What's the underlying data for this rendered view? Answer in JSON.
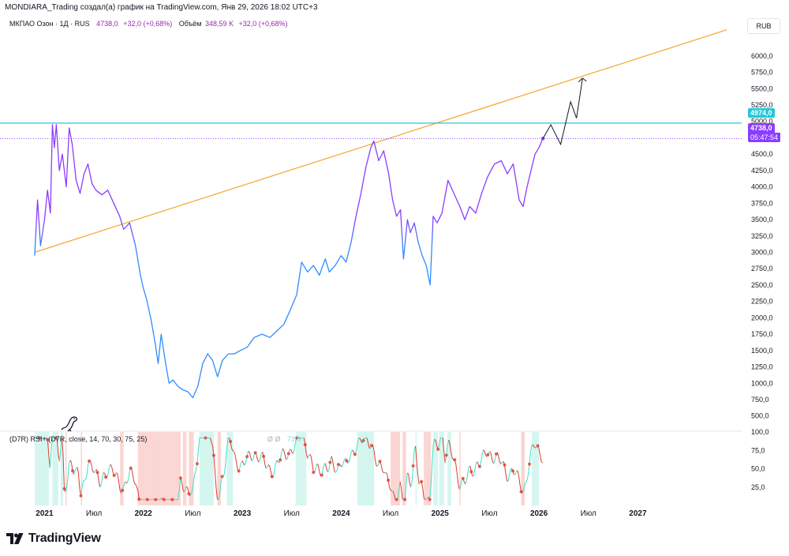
{
  "header": {
    "attribution": "MONDIARA_Trading создал(а) график на TradingView.com, Янв 29, 2026 18:02 UTC+3"
  },
  "legend": {
    "symbol": "МКПАО Озон · 1Д · RUS",
    "price": "4738,0",
    "change": "+32,0 (+0,68%)",
    "volume_label": "Объём",
    "volume": "348,59 K",
    "volume_change": "+32,0 (+0,68%)"
  },
  "currency": "RUB",
  "rsi": {
    "label": "(D7R) RSI+ (D7R, close, 14, 70, 30, 75, 25)",
    "value1": "Ø  Ø",
    "value2": "73,5"
  },
  "tags": {
    "resistance": "4974,0",
    "last_price": "4738,0",
    "countdown": "05:47:54"
  },
  "brand": "TradingView",
  "colors": {
    "price_purple": "#8b3dff",
    "price_blue": "#2f8cff",
    "resistance": "#26c6da",
    "trendline": "#f4a52a",
    "projection": "#131722",
    "rsi_red": "#e03a2f",
    "rsi_green": "#3fe0c0",
    "band_red": "#f9c9c5",
    "band_green": "#c8f4ea"
  },
  "chart_data": {
    "type": "line",
    "title": "МКПАО Озон · 1Д · RUS",
    "ylabel": "RUB",
    "ylim": [
      400,
      6300
    ],
    "y_ticks": [
      "6000,0",
      "5750,0",
      "5500,0",
      "5250,0",
      "5000,0",
      "4750,0",
      "4500,0",
      "4250,0",
      "4000,0",
      "3750,0",
      "3500,0",
      "3250,0",
      "3000,0",
      "2750,0",
      "2500,0",
      "2250,0",
      "2000,0",
      "1750,0",
      "1500,0",
      "1250,0",
      "1000,0",
      "750,0",
      "500,0"
    ],
    "x_tick_labels": [
      {
        "t": 2021.0,
        "label": "2021"
      },
      {
        "t": 2021.5,
        "label": "Июл"
      },
      {
        "t": 2022.0,
        "label": "2022"
      },
      {
        "t": 2022.5,
        "label": "Июл"
      },
      {
        "t": 2023.0,
        "label": "2023"
      },
      {
        "t": 2023.5,
        "label": "Июл"
      },
      {
        "t": 2024.0,
        "label": "2024"
      },
      {
        "t": 2024.5,
        "label": "Июл"
      },
      {
        "t": 2025.0,
        "label": "2025"
      },
      {
        "t": 2025.5,
        "label": "Июл"
      },
      {
        "t": 2026.0,
        "label": "2026"
      },
      {
        "t": 2026.5,
        "label": "Июл"
      },
      {
        "t": 2027.0,
        "label": "2027"
      }
    ],
    "xlim": [
      2020.55,
      2028.05
    ],
    "series": [
      {
        "name": "OZON close",
        "points": [
          [
            2020.9,
            2950
          ],
          [
            2020.93,
            3800
          ],
          [
            2020.96,
            3100
          ],
          [
            2021.0,
            3500
          ],
          [
            2021.03,
            3950
          ],
          [
            2021.06,
            3600
          ],
          [
            2021.08,
            4950
          ],
          [
            2021.1,
            4600
          ],
          [
            2021.12,
            4950
          ],
          [
            2021.15,
            4250
          ],
          [
            2021.18,
            4500
          ],
          [
            2021.22,
            4000
          ],
          [
            2021.25,
            4900
          ],
          [
            2021.28,
            4650
          ],
          [
            2021.32,
            4100
          ],
          [
            2021.36,
            3900
          ],
          [
            2021.4,
            4200
          ],
          [
            2021.44,
            4350
          ],
          [
            2021.48,
            4050
          ],
          [
            2021.52,
            3950
          ],
          [
            2021.58,
            3880
          ],
          [
            2021.64,
            3950
          ],
          [
            2021.7,
            3750
          ],
          [
            2021.76,
            3550
          ],
          [
            2021.8,
            3350
          ],
          [
            2021.86,
            3450
          ],
          [
            2021.92,
            3100
          ],
          [
            2021.97,
            2650
          ],
          [
            2022.0,
            2450
          ],
          [
            2022.03,
            2300
          ],
          [
            2022.08,
            1950
          ],
          [
            2022.12,
            1600
          ],
          [
            2022.15,
            1300
          ],
          [
            2022.18,
            1750
          ],
          [
            2022.22,
            1350
          ],
          [
            2022.26,
            1000
          ],
          [
            2022.3,
            1050
          ],
          [
            2022.35,
            950
          ],
          [
            2022.4,
            900
          ],
          [
            2022.45,
            870
          ],
          [
            2022.5,
            780
          ],
          [
            2022.55,
            950
          ],
          [
            2022.6,
            1300
          ],
          [
            2022.65,
            1450
          ],
          [
            2022.7,
            1350
          ],
          [
            2022.75,
            1100
          ],
          [
            2022.8,
            1350
          ],
          [
            2022.86,
            1450
          ],
          [
            2022.92,
            1450
          ],
          [
            2022.98,
            1500
          ],
          [
            2023.05,
            1550
          ],
          [
            2023.12,
            1700
          ],
          [
            2023.2,
            1750
          ],
          [
            2023.28,
            1700
          ],
          [
            2023.35,
            1800
          ],
          [
            2023.42,
            1900
          ],
          [
            2023.48,
            2100
          ],
          [
            2023.55,
            2350
          ],
          [
            2023.6,
            2850
          ],
          [
            2023.66,
            2700
          ],
          [
            2023.72,
            2800
          ],
          [
            2023.78,
            2650
          ],
          [
            2023.84,
            2900
          ],
          [
            2023.88,
            2700
          ],
          [
            2023.94,
            2800
          ],
          [
            2024.0,
            2950
          ],
          [
            2024.05,
            2850
          ],
          [
            2024.1,
            3150
          ],
          [
            2024.15,
            3550
          ],
          [
            2024.2,
            3900
          ],
          [
            2024.25,
            4300
          ],
          [
            2024.3,
            4600
          ],
          [
            2024.33,
            4700
          ],
          [
            2024.38,
            4400
          ],
          [
            2024.43,
            4550
          ],
          [
            2024.48,
            4200
          ],
          [
            2024.52,
            3800
          ],
          [
            2024.56,
            3550
          ],
          [
            2024.6,
            3650
          ],
          [
            2024.63,
            2900
          ],
          [
            2024.67,
            3500
          ],
          [
            2024.7,
            3300
          ],
          [
            2024.74,
            3450
          ],
          [
            2024.78,
            3150
          ],
          [
            2024.82,
            2950
          ],
          [
            2024.86,
            2800
          ],
          [
            2024.9,
            2500
          ],
          [
            2024.93,
            3550
          ],
          [
            2024.97,
            3450
          ],
          [
            2025.02,
            3600
          ],
          [
            2025.08,
            4100
          ],
          [
            2025.14,
            3900
          ],
          [
            2025.2,
            3700
          ],
          [
            2025.25,
            3500
          ],
          [
            2025.3,
            3700
          ],
          [
            2025.36,
            3600
          ],
          [
            2025.42,
            3900
          ],
          [
            2025.48,
            4150
          ],
          [
            2025.55,
            4350
          ],
          [
            2025.62,
            4400
          ],
          [
            2025.68,
            4200
          ],
          [
            2025.74,
            4350
          ],
          [
            2025.8,
            3800
          ],
          [
            2025.84,
            3700
          ],
          [
            2025.88,
            4000
          ],
          [
            2025.92,
            4250
          ],
          [
            2025.96,
            4500
          ],
          [
            2026.0,
            4600
          ],
          [
            2026.04,
            4738
          ]
        ]
      },
      {
        "name": "projection",
        "points": [
          [
            2026.04,
            4738
          ],
          [
            2026.12,
            4950
          ],
          [
            2026.22,
            4650
          ],
          [
            2026.32,
            5300
          ],
          [
            2026.38,
            5050
          ],
          [
            2026.44,
            5650
          ]
        ]
      }
    ],
    "trendline": {
      "name": "support trendline",
      "from": [
        2020.9,
        3000
      ],
      "to": [
        2027.9,
        6400
      ]
    },
    "horizontal_line": {
      "name": "resistance",
      "value": 4974
    },
    "last_price_line": {
      "value": 4738
    },
    "rsi_pane": {
      "ylim": [
        0,
        100
      ],
      "y_ticks": [
        "100,0",
        "75,0",
        "50,0",
        "25,0"
      ],
      "upper_band": 70,
      "lower_band": 30,
      "last_value": 73.5
    }
  }
}
